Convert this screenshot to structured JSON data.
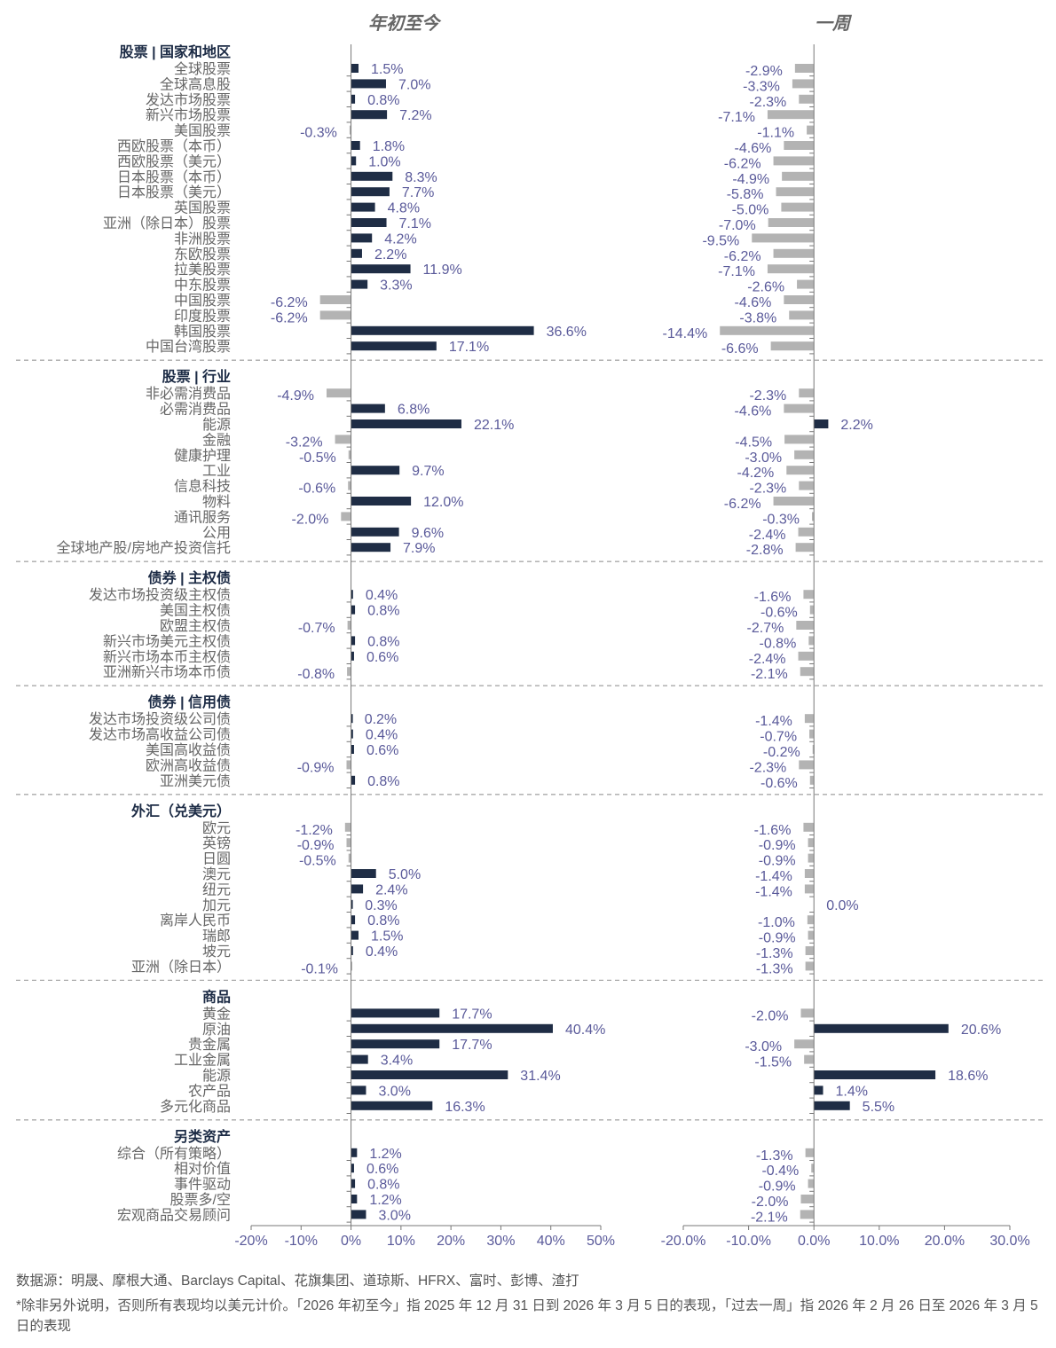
{
  "chart_data": {
    "type": "bar",
    "orientation": "horizontal",
    "panels": [
      {
        "title": "年初至今",
        "xlim": [
          -20,
          50
        ],
        "ticks": [
          -20,
          -10,
          0,
          10,
          20,
          30,
          40,
          50
        ],
        "tick_labels": [
          "-20%",
          "-10%",
          "0%",
          "10%",
          "20%",
          "30%",
          "40%",
          "50%"
        ]
      },
      {
        "title": "一周",
        "xlim": [
          -20,
          30
        ],
        "ticks": [
          -20,
          -10,
          0,
          10,
          20,
          30
        ],
        "tick_labels": [
          "-20.0%",
          "-10.0%",
          "0.0%",
          "10.0%",
          "20.0%",
          "30.0%"
        ]
      }
    ],
    "sections": [
      {
        "name": "股票 | 国家和地区",
        "rows": [
          {
            "label": "全球股票",
            "ytd": 1.5,
            "week": -2.9
          },
          {
            "label": "全球高息股",
            "ytd": 7.0,
            "week": -3.3
          },
          {
            "label": "发达市场股票",
            "ytd": 0.8,
            "week": -2.3
          },
          {
            "label": "新兴市场股票",
            "ytd": 7.2,
            "week": -7.1
          },
          {
            "label": "美国股票",
            "ytd": -0.3,
            "week": -1.1
          },
          {
            "label": "西欧股票（本币）",
            "ytd": 1.8,
            "week": -4.6
          },
          {
            "label": "西欧股票（美元）",
            "ytd": 1.0,
            "week": -6.2
          },
          {
            "label": "日本股票（本币）",
            "ytd": 8.3,
            "week": -4.9
          },
          {
            "label": "日本股票（美元）",
            "ytd": 7.7,
            "week": -5.8
          },
          {
            "label": "英国股票",
            "ytd": 4.8,
            "week": -5.0
          },
          {
            "label": "亚洲（除日本）股票",
            "ytd": 7.1,
            "week": -7.0
          },
          {
            "label": "非洲股票",
            "ytd": 4.2,
            "week": -9.5
          },
          {
            "label": "东欧股票",
            "ytd": 2.2,
            "week": -6.2
          },
          {
            "label": "拉美股票",
            "ytd": 11.9,
            "week": -7.1
          },
          {
            "label": "中东股票",
            "ytd": 3.3,
            "week": -2.6
          },
          {
            "label": "中国股票",
            "ytd": -6.2,
            "week": -4.6
          },
          {
            "label": "印度股票",
            "ytd": -6.2,
            "week": -3.8
          },
          {
            "label": "韩国股票",
            "ytd": 36.6,
            "week": -14.4
          },
          {
            "label": "中国台湾股票",
            "ytd": 17.1,
            "week": -6.6
          }
        ]
      },
      {
        "name": "股票 | 行业",
        "rows": [
          {
            "label": "非必需消费品",
            "ytd": -4.9,
            "week": -2.3
          },
          {
            "label": "必需消费品",
            "ytd": 6.8,
            "week": -4.6
          },
          {
            "label": "能源",
            "ytd": 22.1,
            "week": 2.2
          },
          {
            "label": "金融",
            "ytd": -3.2,
            "week": -4.5
          },
          {
            "label": "健康护理",
            "ytd": -0.5,
            "week": -3.0
          },
          {
            "label": "工业",
            "ytd": 9.7,
            "week": -4.2
          },
          {
            "label": "信息科技",
            "ytd": -0.6,
            "week": -2.3
          },
          {
            "label": "物料",
            "ytd": 12.0,
            "week": -6.2
          },
          {
            "label": "通讯服务",
            "ytd": -2.0,
            "week": -0.3
          },
          {
            "label": "公用",
            "ytd": 9.6,
            "week": -2.4
          },
          {
            "label": "全球地产股/房地产投资信托",
            "ytd": 7.9,
            "week": -2.8
          }
        ]
      },
      {
        "name": "债券 | 主权债",
        "rows": [
          {
            "label": "发达市场投资级主权债",
            "ytd": 0.4,
            "week": -1.6
          },
          {
            "label": "美国主权债",
            "ytd": 0.8,
            "week": -0.6
          },
          {
            "label": "欧盟主权债",
            "ytd": -0.7,
            "week": -2.7
          },
          {
            "label": "新兴市场美元主权债",
            "ytd": 0.8,
            "week": -0.8
          },
          {
            "label": "新兴市场本币主权债",
            "ytd": 0.6,
            "week": -2.4
          },
          {
            "label": "亚洲新兴市场本币债",
            "ytd": -0.8,
            "week": -2.1
          }
        ]
      },
      {
        "name": "债券 | 信用债",
        "rows": [
          {
            "label": "发达市场投资级公司债",
            "ytd": 0.2,
            "week": -1.4
          },
          {
            "label": "发达市场高收益公司债",
            "ytd": 0.4,
            "week": -0.7
          },
          {
            "label": "美国高收益债",
            "ytd": 0.6,
            "week": -0.2
          },
          {
            "label": "欧洲高收益债",
            "ytd": -0.9,
            "week": -2.3
          },
          {
            "label": "亚洲美元债",
            "ytd": 0.8,
            "week": -0.6
          }
        ]
      },
      {
        "name": "外汇（兑美元）",
        "rows": [
          {
            "label": "欧元",
            "ytd": -1.2,
            "week": -1.6
          },
          {
            "label": "英镑",
            "ytd": -0.9,
            "week": -0.9
          },
          {
            "label": "日圆",
            "ytd": -0.5,
            "week": -0.9
          },
          {
            "label": "澳元",
            "ytd": 5.0,
            "week": -1.4
          },
          {
            "label": "纽元",
            "ytd": 2.4,
            "week": -1.4
          },
          {
            "label": "加元",
            "ytd": 0.3,
            "week": 0.0
          },
          {
            "label": "离岸人民币",
            "ytd": 0.8,
            "week": -1.0
          },
          {
            "label": "瑞郎",
            "ytd": 1.5,
            "week": -0.9
          },
          {
            "label": "坡元",
            "ytd": 0.4,
            "week": -1.3
          },
          {
            "label": "亚洲（除日本）",
            "ytd": -0.1,
            "week": -1.3
          }
        ]
      },
      {
        "name": "商品",
        "rows": [
          {
            "label": "黄金",
            "ytd": 17.7,
            "week": -2.0
          },
          {
            "label": "原油",
            "ytd": 40.4,
            "week": 20.6
          },
          {
            "label": "贵金属",
            "ytd": 17.7,
            "week": -3.0
          },
          {
            "label": "工业金属",
            "ytd": 3.4,
            "week": -1.5
          },
          {
            "label": "能源",
            "ytd": 31.4,
            "week": 18.6
          },
          {
            "label": "农产品",
            "ytd": 3.0,
            "week": 1.4
          },
          {
            "label": "多元化商品",
            "ytd": 16.3,
            "week": 5.5
          }
        ]
      },
      {
        "name": "另类资产",
        "rows": [
          {
            "label": "综合（所有策略）",
            "ytd": 1.2,
            "week": -1.3
          },
          {
            "label": "相对价值",
            "ytd": 0.6,
            "week": -0.4
          },
          {
            "label": "事件驱动",
            "ytd": 0.8,
            "week": -0.9
          },
          {
            "label": "股票多/空",
            "ytd": 1.2,
            "week": -2.0
          },
          {
            "label": "宏观商品交易顾问",
            "ytd": 3.0,
            "week": -2.1
          }
        ]
      }
    ],
    "colors": {
      "positive": "#1f2d45",
      "negative": "#b3b3b3",
      "value_label": "#5a5a9a",
      "category_label": "#666666",
      "section_label": "#1c2b45"
    }
  },
  "footer": {
    "source": "数据源：明晟、摩根大通、Barclays Capital、花旗集团、道琼斯、HFRX、富时、彭博、渣打",
    "note": "*除非另外说明，否则所有表现均以美元计价。「2026 年初至今」指 2025 年 12 月 31 日到 2026 年 3 月 5 日的表现，「过去一周」指 2026 年 2 月 26 日至 2026 年 3 月 5 日的表现"
  }
}
